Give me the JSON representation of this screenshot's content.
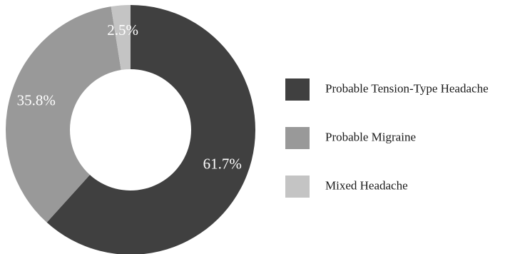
{
  "chart_data": {
    "type": "pie",
    "donut": true,
    "legend_position": "right",
    "slices": [
      {
        "label": "Probable Tension-Type Headache",
        "value": 61.7,
        "display": "61.7%",
        "color": "#404040"
      },
      {
        "label": "Probable Migraine",
        "value": 35.8,
        "display": "35.8%",
        "color": "#999999"
      },
      {
        "label": "Mixed Headache",
        "value": 2.5,
        "display": "2.5%",
        "color": "#c4c4c4"
      }
    ]
  }
}
